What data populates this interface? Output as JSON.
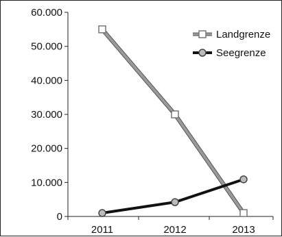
{
  "chart_data": {
    "type": "line",
    "title": "",
    "xlabel": "",
    "ylabel": "",
    "categories": [
      "2011",
      "2012",
      "2013"
    ],
    "ylim": [
      0,
      60000
    ],
    "y_ticks": [
      0,
      10000,
      20000,
      30000,
      40000,
      50000,
      60000
    ],
    "y_tick_labels": [
      "0",
      "10.000",
      "20.000",
      "30.000",
      "40.000",
      "50.000",
      "60.000"
    ],
    "grid": false,
    "legend_position": "top-right",
    "series": [
      {
        "name": "Landgrenze",
        "values": [
          55000,
          30000,
          1000
        ],
        "color": "#888888",
        "marker": "square"
      },
      {
        "name": "Seegrenze",
        "values": [
          1000,
          4200,
          10900
        ],
        "color": "#111111",
        "marker": "circle"
      }
    ]
  }
}
